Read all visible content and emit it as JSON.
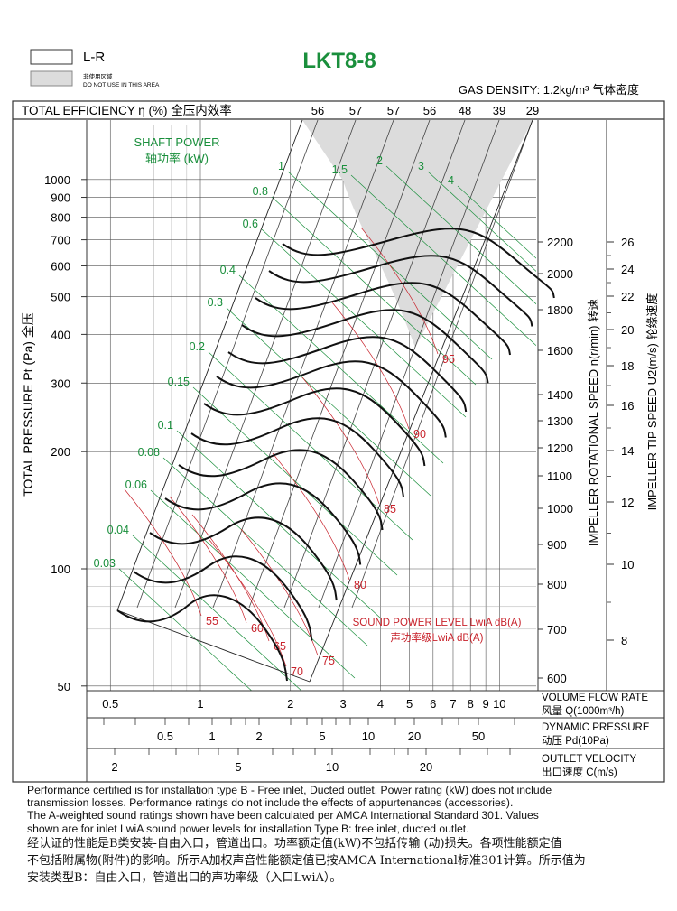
{
  "header": {
    "model": "LKT8-8",
    "legend_lr": "L-R",
    "legend_no_use_zh": "非使用区域",
    "legend_no_use_en": "DO NOT USE IN THIS AREA",
    "gas_density": "GAS DENSITY: 1.2kg/m³ 气体密度"
  },
  "efficiency": {
    "label": "TOTAL EFFICIENCY η (%) 全压内效率",
    "values": [
      "56",
      "57",
      "57",
      "56",
      "48",
      "39",
      "29"
    ]
  },
  "shaft_power": {
    "title_en": "SHAFT POWER",
    "title_zh": "轴功率 (kW)",
    "values": [
      "1",
      "1.5",
      "2",
      "3",
      "4",
      "0.8",
      "0.6",
      "0.4",
      "0.3",
      "0.2",
      "0.15",
      "0.1",
      "0.08",
      "0.06",
      "0.04",
      "0.03"
    ]
  },
  "sound": {
    "title_en": "SOUND POWER LEVEL LwiA dB(A)",
    "title_zh": "声功率级LwiA dB(A)",
    "values": [
      "55",
      "60",
      "65",
      "70",
      "75",
      "80",
      "85",
      "90",
      "95"
    ]
  },
  "axes": {
    "y_label": "TOTAL PRESSURE Pt (Pa) 全压",
    "y_ticks": [
      "1000",
      "900",
      "800",
      "700",
      "600",
      "500",
      "400",
      "300",
      "200",
      "100",
      "50"
    ],
    "speed_label": "IMPELLER ROTATIONAL SPEED n(r/min) 转速",
    "speed_ticks": [
      "2200",
      "2000",
      "1800",
      "1600",
      "1400",
      "1300",
      "1200",
      "1100",
      "1000",
      "900",
      "800",
      "700",
      "600"
    ],
    "tip_label": "IMPELLER TIP SPEED U2(m/s) 轮缘速度",
    "tip_ticks": [
      "26",
      "24",
      "22",
      "20",
      "18",
      "16",
      "14",
      "12",
      "10",
      "8"
    ],
    "flow_ticks": [
      "0.5",
      "1",
      "2",
      "3",
      "4",
      "5",
      "6",
      "7",
      "8",
      "9",
      "10"
    ],
    "flow_label_en": "VOLUME FLOW RATE",
    "flow_label_zh": "风量  Q(1000m³/h)",
    "dyn_ticks": [
      "0.5",
      "1",
      "2",
      "5",
      "10",
      "20",
      "50"
    ],
    "dyn_label_en": "DYNAMIC PRESSURE",
    "dyn_label_zh": "动压  Pd(10Pa)",
    "vel_ticks": [
      "2",
      "5",
      "10",
      "20"
    ],
    "vel_label_en": "OUTLET VELOCITY",
    "vel_label_zh": "出口速度  C(m/s)"
  },
  "notes": {
    "en": [
      "Performance certified is for installation type B - Free inlet, Ducted outlet. Power rating (kW) does not include",
      "transmission losses. Performance ratings do not include the effects of appurtenances (accessories).",
      "The A-weighted sound ratings shown have been calculated per AMCA International Standard 301. Values",
      "shown are for inlet LwiA sound power levels for installation Type B: free inlet, ducted outlet."
    ],
    "zh": [
      "经认证的性能是B类安装-自由入口，管道出口。功率额定值(kW)不包括传输 (动)损失。各项性能额定值",
      "不包括附属物(附件)的影响。所示A加权声音性能额定值已按AMCA International标准301计算。所示值为",
      "安装类型B：自由入口，管道出口的声功率级（入口LwiA）。"
    ]
  },
  "chart_data": {
    "type": "line",
    "title": "LKT8-8",
    "xlabel": "VOLUME FLOW RATE Q(1000m³/h)",
    "ylabel": "TOTAL PRESSURE Pt (Pa)",
    "x_scale": "log",
    "y_scale": "log",
    "xlim": [
      0.45,
      11
    ],
    "ylim": [
      50,
      1050
    ],
    "x_ticks": [
      0.5,
      1,
      2,
      3,
      4,
      5,
      6,
      7,
      8,
      9,
      10
    ],
    "y_ticks": [
      50,
      100,
      200,
      300,
      400,
      500,
      600,
      700,
      800,
      900,
      1000
    ],
    "rotational_speed_curves_rpm": [
      600,
      700,
      800,
      900,
      1000,
      1100,
      1200,
      1300,
      1400,
      1600,
      1800,
      2000,
      2200
    ],
    "efficiency_percent": [
      56,
      57,
      57,
      56,
      48,
      39,
      29
    ],
    "shaft_power_kW": [
      0.03,
      0.04,
      0.06,
      0.08,
      0.1,
      0.15,
      0.2,
      0.3,
      0.4,
      0.6,
      0.8,
      1,
      1.5,
      2,
      3,
      4
    ],
    "sound_power_dBA": [
      55,
      60,
      65,
      70,
      75,
      80,
      85,
      90,
      95
    ],
    "tip_speed_m_s": [
      8,
      10,
      12,
      14,
      16,
      18,
      20,
      22,
      24,
      26
    ],
    "dynamic_pressure_10Pa": [
      0.5,
      1,
      2,
      5,
      10,
      20,
      50
    ],
    "outlet_velocity_m_s": [
      2,
      5,
      10,
      20
    ],
    "grid": true
  },
  "colors": {
    "power": "#1a8f3c",
    "sound": "#c8232c",
    "no_use": "#dcdcdc",
    "curve": "#111111"
  }
}
